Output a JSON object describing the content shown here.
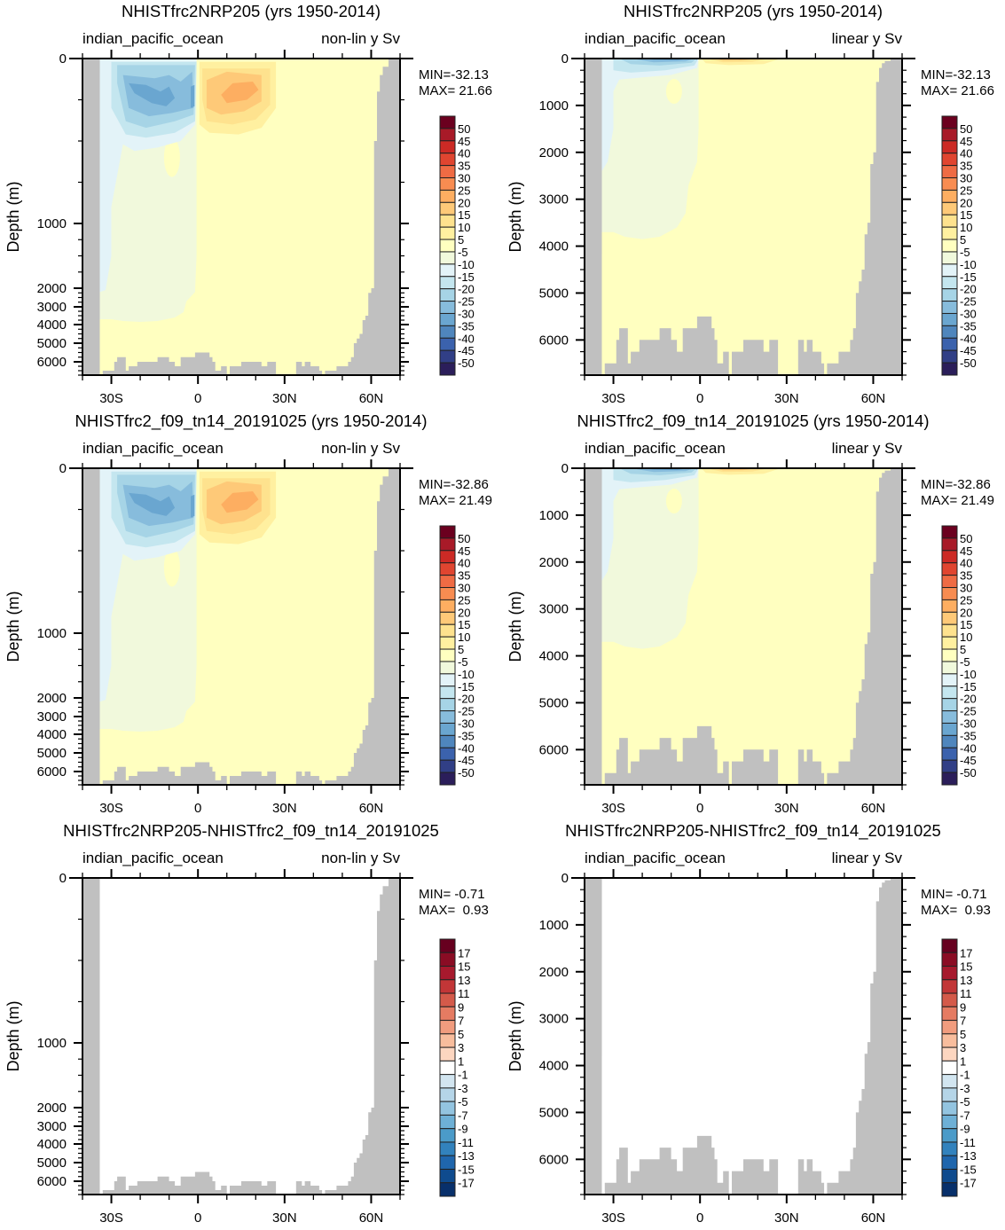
{
  "figure": "Indian-Pacific ocean meridional overturning streamfunction (Sv), six panels",
  "colors": {
    "land": "#c0c0c0",
    "main_scale": [
      "#2b1e5a",
      "#313f86",
      "#3b62ad",
      "#4f86bd",
      "#6aa6d0",
      "#87bcdc",
      "#a6d4e6",
      "#c4e6ef",
      "#e3f3f8",
      "#f1f9dc",
      "#ffffc0",
      "#fff0a0",
      "#fee28e",
      "#fec978",
      "#fdae61",
      "#f88c51",
      "#ef6b44",
      "#e04530",
      "#cc2a25",
      "#a81a28",
      "#6b001f"
    ],
    "diff_scale": [
      "#08306b",
      "#0f4b8e",
      "#1f66ad",
      "#3282bd",
      "#4b9bc9",
      "#6eb0d6",
      "#93c4e0",
      "#b5d5e8",
      "#d2e5f0",
      "#e8f2f7",
      "#ffffff",
      "#fdebe0",
      "#fcd6c0",
      "#f8bd9d",
      "#f19c7e",
      "#e57b62",
      "#d45a4a",
      "#c23637",
      "#a7192d",
      "#8a0c24",
      "#67001f"
    ]
  },
  "chart_data": [
    {
      "type": "heatmap",
      "panel": "top-left",
      "title": "NHISTfrc2NRP205 (yrs 1950-2014)",
      "left_subtitle": "indian_pacific_ocean",
      "right_subtitle": "non-lin y Sv",
      "ylabel": "Depth (m)",
      "y_scale": "non-linear",
      "y_ticks": [
        "0",
        "1000",
        "2000",
        "3000",
        "4000",
        "5000",
        "6000"
      ],
      "x_ticks": [
        "30S",
        "0",
        "30N",
        "60N"
      ],
      "xlim": [
        -40,
        70
      ],
      "ylim": [
        0,
        6750
      ],
      "min_label": "MIN=-32.13",
      "max_label": "MAX= 21.66",
      "colorbar_labels": [
        "50",
        "45",
        "40",
        "35",
        "30",
        "25",
        "20",
        "15",
        "10",
        "5",
        "-5",
        "-10",
        "-15",
        "-20",
        "-25",
        "-30",
        "-35",
        "-40",
        "-45",
        "-50"
      ],
      "scale": "main"
    },
    {
      "type": "heatmap",
      "panel": "top-right",
      "title": "NHISTfrc2NRP205 (yrs 1950-2014)",
      "left_subtitle": "indian_pacific_ocean",
      "right_subtitle": "linear y Sv",
      "ylabel": "Depth (m)",
      "y_scale": "linear",
      "y_ticks": [
        "0",
        "1000",
        "2000",
        "3000",
        "4000",
        "5000",
        "6000"
      ],
      "x_ticks": [
        "30S",
        "0",
        "30N",
        "60N"
      ],
      "xlim": [
        -40,
        70
      ],
      "ylim": [
        0,
        6750
      ],
      "min_label": "MIN=-32.13",
      "max_label": "MAX= 21.66",
      "colorbar_labels": [
        "50",
        "45",
        "40",
        "35",
        "30",
        "25",
        "20",
        "15",
        "10",
        "5",
        "-5",
        "-10",
        "-15",
        "-20",
        "-25",
        "-30",
        "-35",
        "-40",
        "-45",
        "-50"
      ],
      "scale": "main"
    },
    {
      "type": "heatmap",
      "panel": "middle-left",
      "title": "NHISTfrc2_f09_tn14_20191025 (yrs 1950-2014)",
      "left_subtitle": "indian_pacific_ocean",
      "right_subtitle": "non-lin y Sv",
      "ylabel": "Depth (m)",
      "y_scale": "non-linear",
      "y_ticks": [
        "0",
        "1000",
        "2000",
        "3000",
        "4000",
        "5000",
        "6000"
      ],
      "x_ticks": [
        "30S",
        "0",
        "30N",
        "60N"
      ],
      "xlim": [
        -40,
        70
      ],
      "ylim": [
        0,
        6750
      ],
      "min_label": "MIN=-32.86",
      "max_label": "MAX= 21.49",
      "colorbar_labels": [
        "50",
        "45",
        "40",
        "35",
        "30",
        "25",
        "20",
        "15",
        "10",
        "5",
        "-5",
        "-10",
        "-15",
        "-20",
        "-25",
        "-30",
        "-35",
        "-40",
        "-45",
        "-50"
      ],
      "scale": "main"
    },
    {
      "type": "heatmap",
      "panel": "middle-right",
      "title": "NHISTfrc2_f09_tn14_20191025 (yrs 1950-2014)",
      "left_subtitle": "indian_pacific_ocean",
      "right_subtitle": "linear y Sv",
      "ylabel": "Depth (m)",
      "y_scale": "linear",
      "y_ticks": [
        "0",
        "1000",
        "2000",
        "3000",
        "4000",
        "5000",
        "6000"
      ],
      "x_ticks": [
        "30S",
        "0",
        "30N",
        "60N"
      ],
      "xlim": [
        -40,
        70
      ],
      "ylim": [
        0,
        6750
      ],
      "min_label": "MIN=-32.86",
      "max_label": "MAX= 21.49",
      "colorbar_labels": [
        "50",
        "45",
        "40",
        "35",
        "30",
        "25",
        "20",
        "15",
        "10",
        "5",
        "-5",
        "-10",
        "-15",
        "-20",
        "-25",
        "-30",
        "-35",
        "-40",
        "-45",
        "-50"
      ],
      "scale": "main"
    },
    {
      "type": "heatmap",
      "panel": "bottom-left",
      "title": "NHISTfrc2NRP205-NHISTfrc2_f09_tn14_20191025",
      "left_subtitle": "indian_pacific_ocean",
      "right_subtitle": "non-lin y Sv",
      "ylabel": "Depth (m)",
      "y_scale": "non-linear",
      "y_ticks": [
        "0",
        "1000",
        "2000",
        "3000",
        "4000",
        "5000",
        "6000"
      ],
      "x_ticks": [
        "30S",
        "0",
        "30N",
        "60N"
      ],
      "xlim": [
        -40,
        70
      ],
      "ylim": [
        0,
        6750
      ],
      "min_label": "MIN= -0.71",
      "max_label": "MAX=  0.93",
      "colorbar_labels": [
        "17",
        "15",
        "13",
        "11",
        "9",
        "7",
        "5",
        "3",
        "1",
        "-1",
        "-3",
        "-5",
        "-7",
        "-9",
        "-11",
        "-13",
        "-15",
        "-17"
      ],
      "scale": "diff"
    },
    {
      "type": "heatmap",
      "panel": "bottom-right",
      "title": "NHISTfrc2NRP205-NHISTfrc2_f09_tn14_20191025",
      "left_subtitle": "indian_pacific_ocean",
      "right_subtitle": "linear y Sv",
      "ylabel": "Depth (m)",
      "y_scale": "linear",
      "y_ticks": [
        "0",
        "1000",
        "2000",
        "3000",
        "4000",
        "5000",
        "6000"
      ],
      "x_ticks": [
        "30S",
        "0",
        "30N",
        "60N"
      ],
      "xlim": [
        -40,
        70
      ],
      "ylim": [
        0,
        6750
      ],
      "min_label": "MIN= -0.71",
      "max_label": "MAX=  0.93",
      "colorbar_labels": [
        "17",
        "15",
        "13",
        "11",
        "9",
        "7",
        "5",
        "3",
        "1",
        "-1",
        "-3",
        "-5",
        "-7",
        "-9",
        "-11",
        "-13",
        "-15",
        "-17"
      ],
      "scale": "diff"
    }
  ],
  "bathymetry": {
    "south_wall_lat": -34,
    "bottom_profile": [
      [
        -34,
        6750
      ],
      [
        -33,
        6500
      ],
      [
        -31,
        6500
      ],
      [
        -30,
        6500
      ],
      [
        -29,
        6000
      ],
      [
        -28,
        5750
      ],
      [
        -25,
        6500
      ],
      [
        -24,
        6250
      ],
      [
        -21,
        6000
      ],
      [
        -14,
        5750
      ],
      [
        -10,
        6000
      ],
      [
        -8,
        6250
      ],
      [
        -6,
        5750
      ],
      [
        -1,
        5500
      ],
      [
        4,
        5750
      ],
      [
        5,
        6000
      ],
      [
        6,
        6500
      ],
      [
        8,
        6250
      ],
      [
        10,
        6750
      ],
      [
        11,
        6250
      ],
      [
        15,
        6000
      ],
      [
        22,
        6250
      ],
      [
        24,
        6000
      ],
      [
        27,
        6750
      ],
      [
        34,
        6000
      ],
      [
        36,
        6250
      ],
      [
        37,
        6000
      ],
      [
        39,
        6250
      ],
      [
        42,
        6500
      ],
      [
        43,
        6750
      ],
      [
        44,
        6500
      ],
      [
        48,
        6250
      ],
      [
        52,
        6000
      ],
      [
        53,
        5750
      ],
      [
        54,
        5000
      ],
      [
        55,
        4750
      ],
      [
        56,
        4500
      ],
      [
        57,
        3750
      ],
      [
        58,
        3500
      ],
      [
        59,
        2250
      ],
      [
        60,
        2000
      ],
      [
        61,
        500
      ],
      [
        62,
        200
      ],
      [
        63,
        100
      ],
      [
        64,
        50
      ],
      [
        66,
        0
      ],
      [
        70,
        0
      ]
    ]
  }
}
